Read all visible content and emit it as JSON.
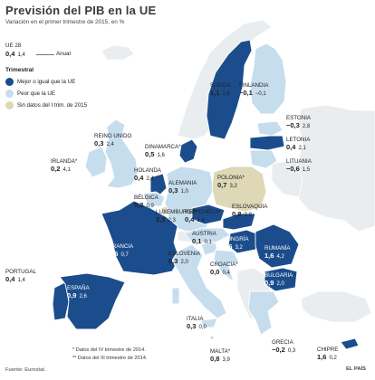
{
  "title": "Previsión del PIB en la UE",
  "subtitle": "Variación en el primer trimestre de 2015, en %",
  "legend": {
    "sample_country": "UE 28",
    "sample_quarterly": "0,4",
    "sample_annual": "1,4",
    "annual_label": "Anual",
    "group_title": "Trimestral",
    "items": [
      {
        "label": "Mejor o igual que la UE",
        "color": "#1b4d8c"
      },
      {
        "label": "Peor que la UE",
        "color": "#c6ddee"
      },
      {
        "label": "Sin datos del I trim. de 2015",
        "color": "#ded8b7"
      }
    ]
  },
  "colors": {
    "better": "#1b4d8c",
    "worse": "#c6ddee",
    "nodata": "#ded8b7",
    "non_eu": "#e9edf0",
    "sea": "#ffffff",
    "border": "#ffffff"
  },
  "countries": [
    {
      "id": "suecia",
      "name": "SUECIA",
      "q": "1,1",
      "a": "2,6",
      "status": "better"
    },
    {
      "id": "finlandia",
      "name": "FINLANDIA",
      "q": "−0,1",
      "a": "−0,1",
      "status": "worse"
    },
    {
      "id": "estonia",
      "name": "ESTONIA",
      "q": "−0,3",
      "a": "2,8",
      "status": "worse"
    },
    {
      "id": "letonia",
      "name": "LETONIA",
      "q": "0,4",
      "a": "2,1",
      "status": "better"
    },
    {
      "id": "lituania",
      "name": "LITUANIA",
      "q": "−0,6",
      "a": "1,5",
      "status": "worse"
    },
    {
      "id": "reino_unido",
      "name": "REINO UNIDO",
      "q": "0,3",
      "a": "2,4",
      "status": "worse"
    },
    {
      "id": "irlanda",
      "name": "IRLANDA",
      "q": "0,2",
      "a": "4,1",
      "star": "*",
      "status": "worse"
    },
    {
      "id": "dinamarca",
      "name": "DINAMARCA",
      "q": "0,5",
      "a": "1,6",
      "star": "*",
      "status": "better"
    },
    {
      "id": "holanda",
      "name": "HOLANDA",
      "q": "0,4",
      "a": "2,4",
      "status": "better"
    },
    {
      "id": "alemania",
      "name": "ALEMANIA",
      "q": "0,3",
      "a": "1,0",
      "status": "worse"
    },
    {
      "id": "polonia",
      "name": "POLONIA",
      "q": "0,7",
      "a": "3,2",
      "star": "*",
      "status": "nodata"
    },
    {
      "id": "belgica",
      "name": "BÉLGICA",
      "q": "0,3",
      "a": "0,9",
      "status": "worse"
    },
    {
      "id": "luxemburgo",
      "name": "LUXEMBURGO",
      "q": "2,3",
      "a": "2,3",
      "star": "**",
      "status": "nodata"
    },
    {
      "id": "rep_checa",
      "name": "REP. CHECA",
      "q": "0,4",
      "a": "1,4",
      "star": "*",
      "status": "better"
    },
    {
      "id": "eslovaquia",
      "name": "ESLOVAQUIA",
      "q": "0,8",
      "a": "2,9",
      "status": "better"
    },
    {
      "id": "francia",
      "name": "FRANCIA",
      "q": "0,6",
      "a": "0,7",
      "status": "better"
    },
    {
      "id": "austria",
      "name": "AUSTRIA",
      "q": "0,1",
      "a": "0,1",
      "status": "worse"
    },
    {
      "id": "hungria",
      "name": "HUNGRÍA",
      "q": "0,6",
      "a": "3,2",
      "status": "better"
    },
    {
      "id": "rumania",
      "name": "RUMANÍA",
      "q": "1,6",
      "a": "4,2",
      "status": "better"
    },
    {
      "id": "eslovenia",
      "name": "ESLOVENIA",
      "q": "0,3",
      "a": "2,0",
      "status": "worse"
    },
    {
      "id": "croacia",
      "name": "CROACIA",
      "q": "0,0",
      "a": "0,4",
      "star": "*",
      "status": "worse"
    },
    {
      "id": "bulgaria",
      "name": "BULGARIA",
      "q": "0,9",
      "a": "2,0",
      "status": "better"
    },
    {
      "id": "portugal",
      "name": "PORTUGAL",
      "q": "0,4",
      "a": "1,4",
      "status": "better"
    },
    {
      "id": "espana",
      "name": "ESPAÑA",
      "q": "0,9",
      "a": "2,6",
      "status": "better"
    },
    {
      "id": "italia",
      "name": "ITALIA",
      "q": "0,3",
      "a": "0,0",
      "status": "worse"
    },
    {
      "id": "grecia",
      "name": "GRECIA",
      "q": "−0,2",
      "a": "0,3",
      "status": "worse"
    },
    {
      "id": "malta",
      "name": "MALTA",
      "q": "0,8",
      "a": "3,9",
      "star": "*",
      "status": "nodata"
    },
    {
      "id": "chipre",
      "name": "CHIPRE",
      "q": "1,6",
      "a": "0,2",
      "status": "better"
    }
  ],
  "notes": [
    "* Datos del IV trimestre de 2014.",
    "** Datos del III trimestre de 2014."
  ],
  "source": "Fuente: Eurostat.",
  "credit": "EL PAÍS"
}
